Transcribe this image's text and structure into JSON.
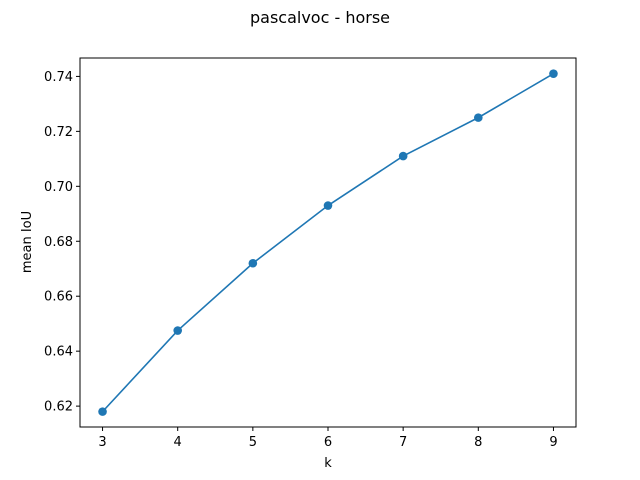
{
  "chart_data": {
    "type": "line",
    "title": "pascalvoc - horse",
    "xlabel": "k",
    "ylabel": "mean IoU",
    "x": [
      3,
      4,
      5,
      6,
      7,
      8,
      9
    ],
    "series": [
      {
        "values": [
          0.618,
          0.6475,
          0.672,
          0.693,
          0.711,
          0.725,
          0.741
        ],
        "color": "#1f77b4",
        "marker": "circle"
      }
    ],
    "xlim": [
      2.7,
      9.3
    ],
    "ylim": [
      0.6124,
      0.7467
    ],
    "xticks": [
      3,
      4,
      5,
      6,
      7,
      8,
      9
    ],
    "yticks": [
      0.62,
      0.64,
      0.66,
      0.68,
      0.7,
      0.72,
      0.74
    ],
    "ytick_labels": [
      "0.62",
      "0.64",
      "0.66",
      "0.68",
      "0.70",
      "0.72",
      "0.74"
    ],
    "grid": false,
    "legend": "none"
  }
}
